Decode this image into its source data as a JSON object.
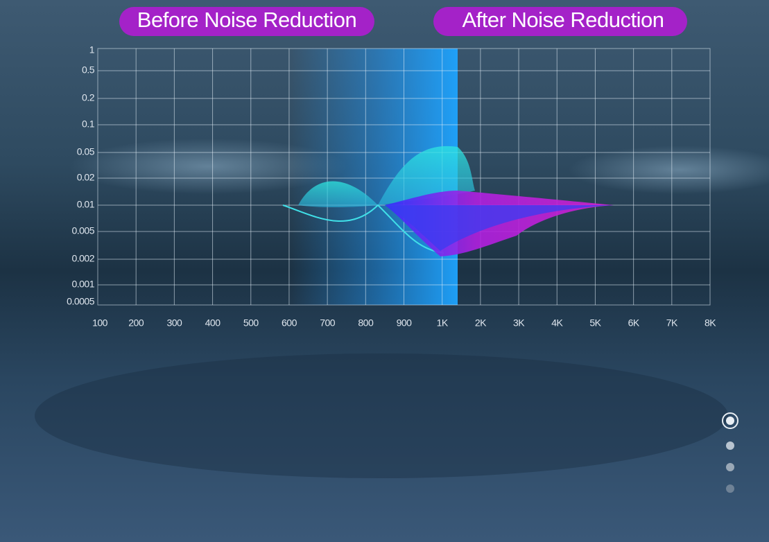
{
  "header": {
    "before": "Before Noise Reduction",
    "after": "After Noise Reduction"
  },
  "y_axis": {
    "labels": [
      "1",
      "0.5",
      "0.2",
      "0.1",
      "0.05",
      "0.02",
      "0.01",
      "0.005",
      "0.002",
      "0.001",
      "0.0005"
    ]
  },
  "x_axis": {
    "labels": [
      "100",
      "200",
      "300",
      "400",
      "500",
      "600",
      "700",
      "800",
      "900",
      "1K",
      "2K",
      "3K",
      "4K",
      "5K",
      "6K",
      "7K",
      "8K"
    ]
  }
}
